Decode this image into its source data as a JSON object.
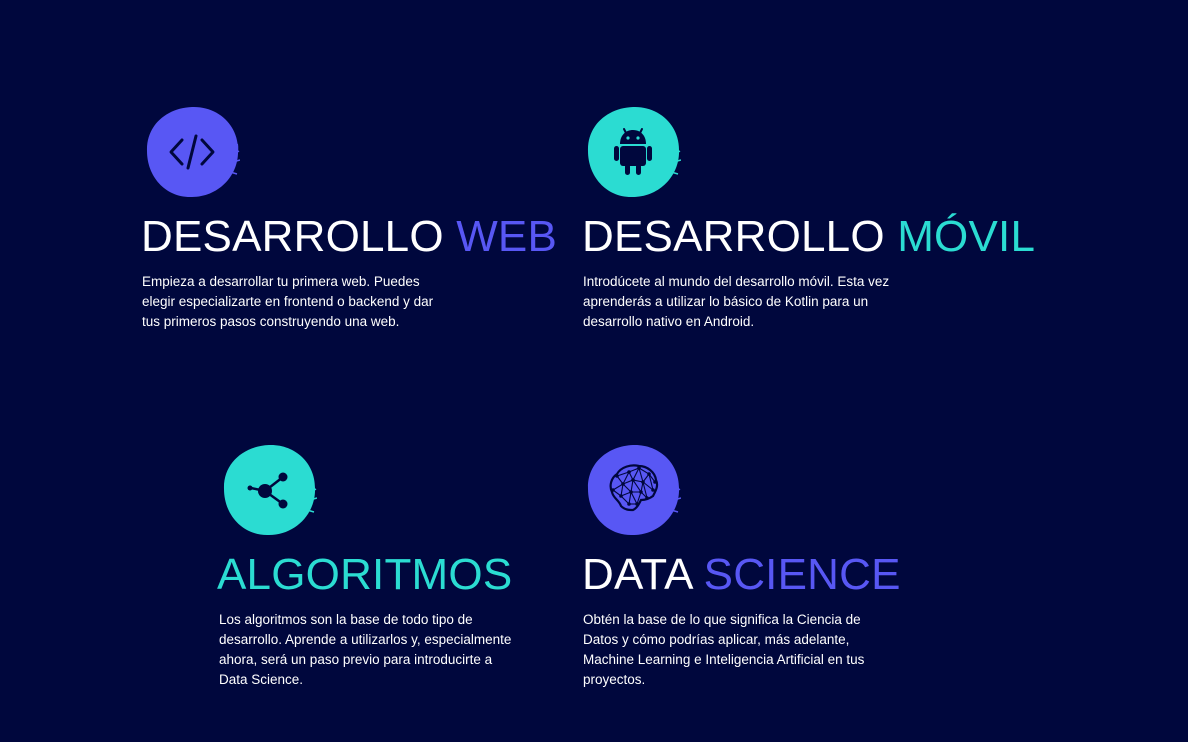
{
  "colors": {
    "background": "#00073d",
    "purple": "#5857f4",
    "teal": "#2bdcd2",
    "icon_glyph": "#00073d",
    "text": "#ffffff"
  },
  "cards": [
    {
      "icon": "code-icon",
      "title_word1": "DESARROLLO",
      "title_word2": "WEB",
      "description": "Empieza a desarrollar tu primera web. Puedes elegir especializarte en frontend o backend y dar tus primeros pasos construyendo una web."
    },
    {
      "icon": "android-icon",
      "title_word1": "DESARROLLO",
      "title_word2": "MÓVIL",
      "description": "Introdúcete al mundo del desarrollo móvil. Esta vez aprenderás a utilizar lo básico de Kotlin para un desarrollo nativo en Android."
    },
    {
      "icon": "share-nodes-icon",
      "title_word1": "",
      "title_word2": "ALGORITMOS",
      "description": "Los algoritmos son la base de todo tipo de desarrollo. Aprende a utilizarlos y, especialmente ahora, será un paso previo para introducirte a Data Science."
    },
    {
      "icon": "brain-icon",
      "title_word1": "DATA",
      "title_word2": "SCIENCE",
      "description": "Obtén la base de lo que significa la Ciencia de Datos y cómo podrías aplicar, más adelante, Machine Learning e Inteligencia Artificial en tus proyectos."
    }
  ]
}
